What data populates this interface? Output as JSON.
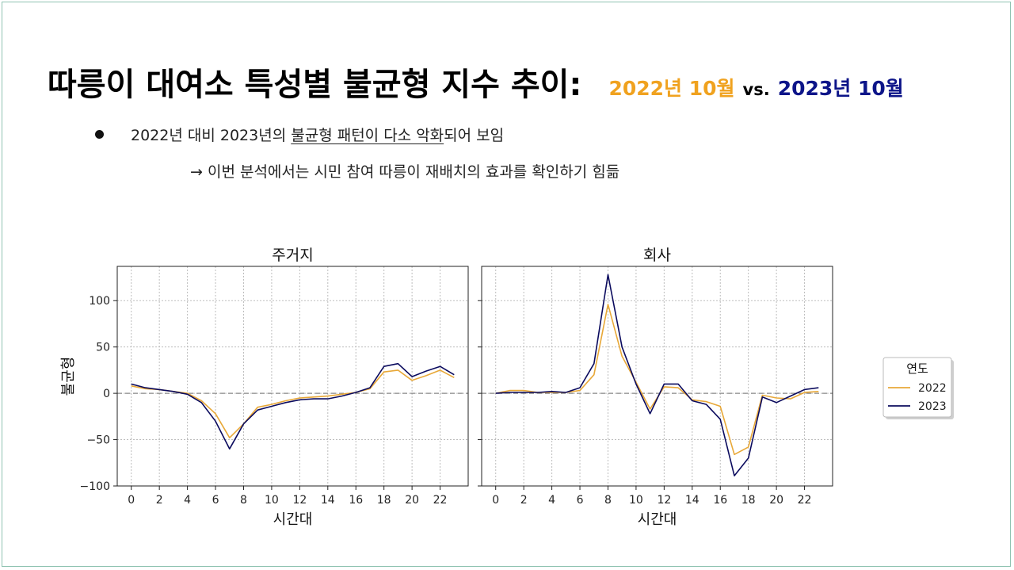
{
  "slide": {
    "title": "따릉이 대여소 특성별 불균형 지수 추이:",
    "subtitle_2022": "2022년 10월",
    "subtitle_vs": "vs.",
    "subtitle_2023": "2023년 10월",
    "bullet_prefix": "2022년 대비 2023년의 ",
    "bullet_underlined": "불균형 패턴이 다소 악화",
    "bullet_suffix": "되어 보임",
    "arrow_line": "→ 이번 분석에서는 시민 참여 따릉이 재배치의 효과를 확인하기 힘듦"
  },
  "colors": {
    "series_2022": "#e8a838",
    "series_2023": "#0b0b5e",
    "zero_line": "#888888",
    "grid": "#bdbdbd"
  },
  "chart_data": [
    {
      "type": "line",
      "title": "주거지",
      "xlabel": "시간대",
      "ylabel": "불균형",
      "x": [
        0,
        1,
        2,
        3,
        4,
        5,
        6,
        7,
        8,
        9,
        10,
        11,
        12,
        13,
        14,
        15,
        16,
        17,
        18,
        19,
        20,
        21,
        22,
        23
      ],
      "xticks": [
        0,
        2,
        4,
        6,
        8,
        10,
        12,
        14,
        16,
        18,
        20,
        22
      ],
      "xtick_labels": [
        "0",
        "2",
        "4",
        "6",
        "8",
        "10",
        "12",
        "14",
        "16",
        "18",
        "20",
        "22"
      ],
      "yticks": [
        100,
        50,
        0,
        -50,
        -100
      ],
      "ytick_labels": [
        "100",
        "50",
        "0",
        "−50",
        "−100"
      ],
      "xlim": [
        -1,
        24
      ],
      "ylim": [
        -100,
        137
      ],
      "series": [
        {
          "name": "2022",
          "values": [
            8,
            5,
            4,
            2,
            0,
            -8,
            -22,
            -48,
            -33,
            -15,
            -12,
            -8,
            -5,
            -4,
            -3,
            -1,
            1,
            5,
            23,
            25,
            14,
            19,
            25,
            17
          ]
        },
        {
          "name": "2023",
          "values": [
            10,
            6,
            4,
            2,
            -1,
            -10,
            -30,
            -60,
            -33,
            -18,
            -14,
            -10,
            -7,
            -6,
            -6,
            -3,
            1,
            6,
            29,
            32,
            18,
            24,
            29,
            20
          ]
        }
      ]
    },
    {
      "type": "line",
      "title": "회사",
      "xlabel": "시간대",
      "ylabel": "",
      "x": [
        0,
        1,
        2,
        3,
        4,
        5,
        6,
        7,
        8,
        9,
        10,
        11,
        12,
        13,
        14,
        15,
        16,
        17,
        18,
        19,
        20,
        21,
        22,
        23
      ],
      "xticks": [
        0,
        2,
        4,
        6,
        8,
        10,
        12,
        14,
        16,
        18,
        20,
        22
      ],
      "xtick_labels": [
        "0",
        "2",
        "4",
        "6",
        "8",
        "10",
        "12",
        "14",
        "16",
        "18",
        "20",
        "22"
      ],
      "xlim": [
        -1,
        24
      ],
      "ylim": [
        -100,
        137
      ],
      "series": [
        {
          "name": "2022",
          "values": [
            0,
            3,
            3,
            1,
            1,
            1,
            3,
            20,
            96,
            40,
            12,
            -17,
            7,
            6,
            -7,
            -9,
            -14,
            -66,
            -58,
            -2,
            -5,
            -6,
            1,
            2
          ]
        },
        {
          "name": "2023",
          "values": [
            0,
            1,
            1,
            1,
            2,
            1,
            6,
            32,
            128,
            50,
            10,
            -22,
            10,
            10,
            -8,
            -12,
            -28,
            -89,
            -70,
            -4,
            -10,
            -3,
            4,
            6
          ]
        }
      ]
    }
  ],
  "legend": {
    "title": "연도",
    "entries": [
      "2022",
      "2023"
    ]
  }
}
